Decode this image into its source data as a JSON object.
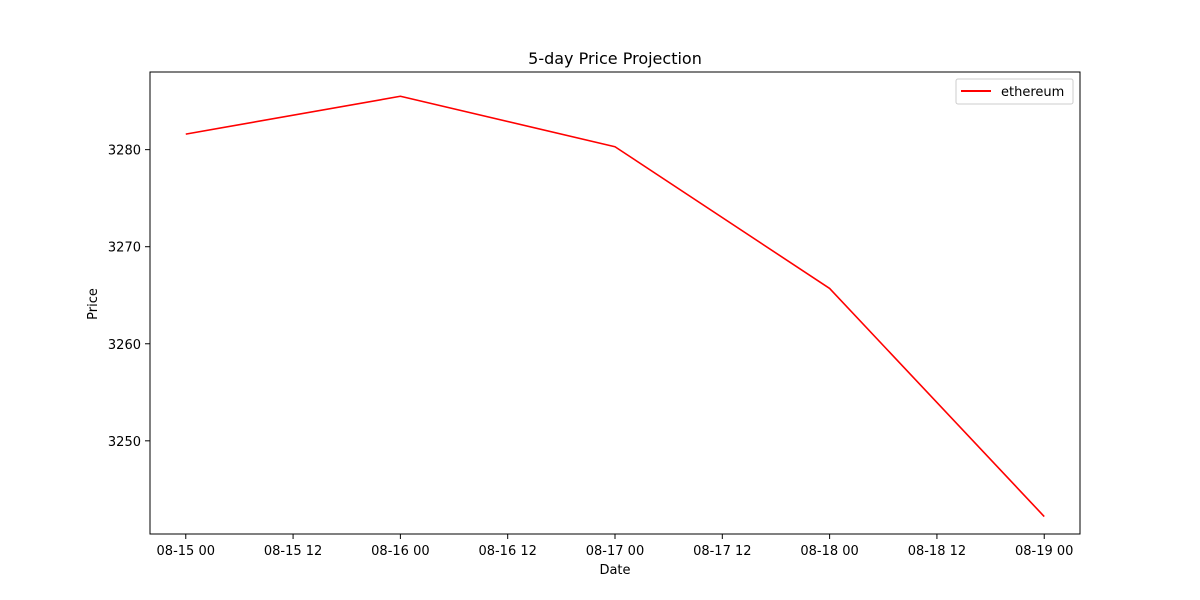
{
  "chart_data": {
    "type": "line",
    "title": "5-day Price Projection",
    "xlabel": "Date",
    "ylabel": "Price",
    "x": [
      "08-15 00",
      "08-16 00",
      "08-17 00",
      "08-18 00",
      "08-19 00"
    ],
    "x_ticks": [
      "08-15 00",
      "08-15 12",
      "08-16 00",
      "08-16 12",
      "08-17 00",
      "08-17 12",
      "08-18 00",
      "08-18 12",
      "08-19 00"
    ],
    "xlim": [
      "08-14 20",
      "08-19 04"
    ],
    "y_ticks": [
      3250,
      3260,
      3270,
      3280
    ],
    "ylim": [
      3240.4,
      3288.0
    ],
    "series": [
      {
        "name": "ethereum",
        "color": "#ff0000",
        "values": [
          3281.6,
          3285.5,
          3280.3,
          3265.7,
          3242.2
        ]
      }
    ],
    "legend": "top-right",
    "grid": false
  }
}
